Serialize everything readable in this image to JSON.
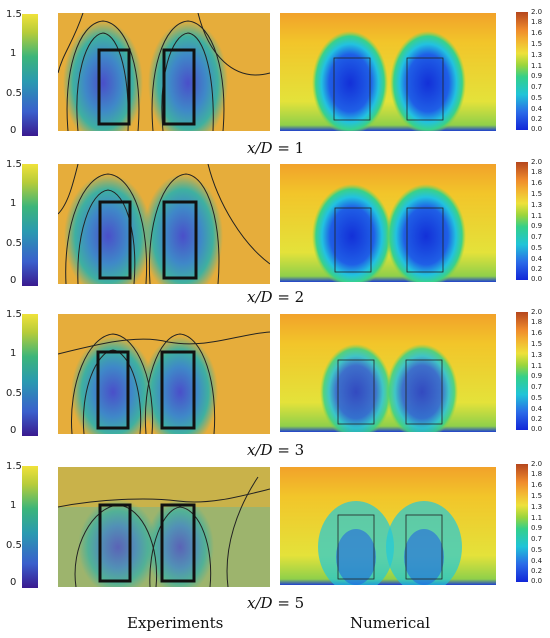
{
  "left_colorbar": {
    "ticks": [
      "1.5",
      "1",
      "0.5",
      "0"
    ]
  },
  "right_colorbar": {
    "ticks": [
      "2.0",
      "1.8",
      "1.6",
      "1.5",
      "1.3",
      "1.1",
      "0.9",
      "0.7",
      "0.5",
      "0.4",
      "0.2",
      "0.0"
    ]
  },
  "panels": [
    {
      "label_var": "x/D",
      "label_eq": "= 1"
    },
    {
      "label_var": "x/D",
      "label_eq": "= 2"
    },
    {
      "label_var": "x/D",
      "label_eq": "= 3"
    },
    {
      "label_var": "x/D",
      "label_eq": "= 5"
    }
  ],
  "footer": {
    "left": "Experiments",
    "right": "Numerical"
  },
  "colors": {
    "exp_bg": "#e6ad3b",
    "exp_blue": "#4a69d4",
    "num_bg": "#f2c52a",
    "num_blue": "#1339e0",
    "num_cyan": "#22c9d9"
  }
}
